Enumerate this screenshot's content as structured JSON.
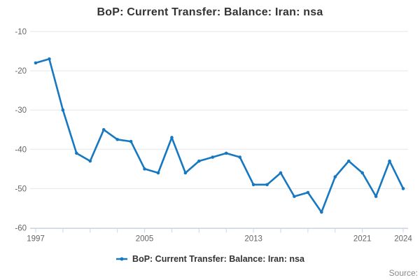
{
  "title": "BoP: Current Transfer: Balance: Iran: nsa",
  "legend": {
    "label": "BoP: Current Transfer: Balance: Iran: nsa"
  },
  "source_label": "Source:",
  "colors": {
    "series": "#1778c2",
    "grid_line": "#e6e6e6",
    "axis_line": "#ccd6eb",
    "axis_label": "#666666",
    "title_text": "#333333",
    "legend_text": "#333333",
    "source_text": "#888888"
  },
  "chart_data": {
    "type": "line",
    "title": "BoP: Current Transfer: Balance: Iran: nsa",
    "xlabel": "",
    "ylabel": "",
    "x": [
      1997,
      1998,
      1999,
      2000,
      2001,
      2002,
      2003,
      2004,
      2005,
      2006,
      2007,
      2008,
      2009,
      2010,
      2011,
      2012,
      2013,
      2014,
      2015,
      2016,
      2017,
      2018,
      2019,
      2020,
      2021,
      2022,
      2023,
      2024
    ],
    "values": [
      -18,
      -17,
      -30,
      -41,
      -43,
      -35,
      -37.5,
      -38,
      -45,
      -46,
      -37,
      -46,
      -43,
      -42,
      -41,
      -42,
      -49,
      -49,
      -46,
      -52,
      -51,
      -56,
      -47,
      -43,
      -46,
      -52,
      -43,
      -50
    ],
    "series_name": "BoP: Current Transfer: Balance: Iran: nsa",
    "xlim": [
      1997,
      2024
    ],
    "ylim": [
      -60,
      -10
    ],
    "y_ticks": [
      -10,
      -20,
      -30,
      -40,
      -50,
      -60
    ],
    "x_minor_ticks": [
      1997,
      1999,
      2001,
      2003,
      2005,
      2007,
      2009,
      2011,
      2013,
      2015,
      2017,
      2019,
      2021,
      2024
    ],
    "x_tick_labels": [
      1997,
      2005,
      2013,
      2021,
      2024
    ],
    "grid": true,
    "legend_position": "bottom",
    "marker": "circle"
  }
}
